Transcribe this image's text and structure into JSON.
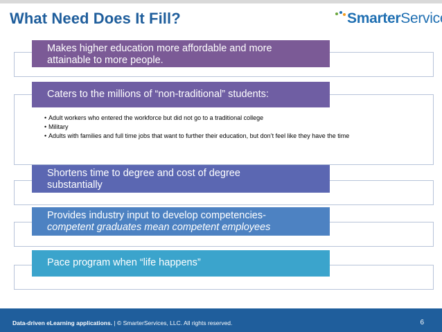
{
  "title": "What Need Does It Fill?",
  "logo": {
    "bold": "Smarter",
    "light": "Services"
  },
  "items": [
    {
      "line1": "Makes higher education more affordable and more",
      "line2": "attainable to more people.",
      "color": "#7b5a96"
    },
    {
      "line1": "Caters to the millions of “non-traditional” students:",
      "line2": "",
      "color": "#6f5ea3",
      "bullets": [
        "Adult workers who entered the workforce but did not go to a traditional college",
        "Military",
        "Adults with families and full time jobs that want to further their education, but don’t feel like they have the time"
      ]
    },
    {
      "line1": "Shortens time to degree and cost of degree",
      "line2": "substantially",
      "color": "#5b67b2"
    },
    {
      "line1": "Provides industry input to develop competencies-",
      "line2": "competent graduates mean competent employees",
      "color": "#4d82c2"
    },
    {
      "line1": "Pace program when “life happens”",
      "line2": "",
      "color": "#3ba4cc"
    }
  ],
  "footer": {
    "bold": "Data-driven eLearning applications.",
    "rest": " | © SmarterServices, LLC. All rights reserved.",
    "page": "6"
  }
}
